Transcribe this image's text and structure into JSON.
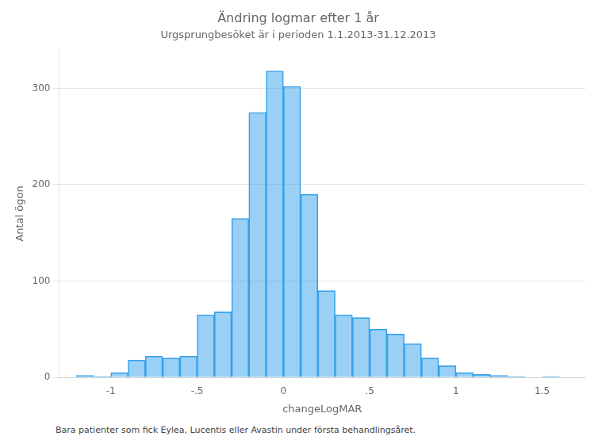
{
  "chart_data": {
    "type": "histogram",
    "title": "Ändring logmar efter 1 år",
    "subtitle": "Urgsprungbesöket är i perioden 1.1.2013-31.12.2013",
    "x_label": "changeLogMAR",
    "y_label": "Antal ögon",
    "footnote": "Bara patienter som fick Eylea, Lucentis eller Avastin under första behandlingsåret.",
    "bins": [
      -1.2,
      -1.1,
      -1.0,
      -0.9,
      -0.8,
      -0.7,
      -0.6,
      -0.5,
      -0.4,
      -0.3,
      -0.2,
      -0.1,
      0.0,
      0.1,
      0.2,
      0.3,
      0.4,
      0.5,
      0.6,
      0.7,
      0.8,
      0.9,
      1.0,
      1.1,
      1.2,
      1.3,
      1.4,
      1.5,
      1.6,
      1.7
    ],
    "values": [
      2,
      1,
      5,
      18,
      22,
      20,
      22,
      65,
      68,
      165,
      275,
      318,
      302,
      190,
      90,
      65,
      62,
      50,
      45,
      35,
      20,
      12,
      5,
      3,
      2,
      1,
      0,
      1,
      0
    ],
    "xlim": [
      -1.3,
      1.75
    ],
    "xticks": [
      -1,
      {
        "value": -0.5,
        "label": "-.5"
      },
      0,
      {
        "value": 0.5,
        "label": ".5"
      },
      1,
      1.5
    ],
    "ylim": [
      0,
      340
    ],
    "yticks": [
      0,
      100,
      200,
      300
    ],
    "grid": "y",
    "legend": false
  }
}
